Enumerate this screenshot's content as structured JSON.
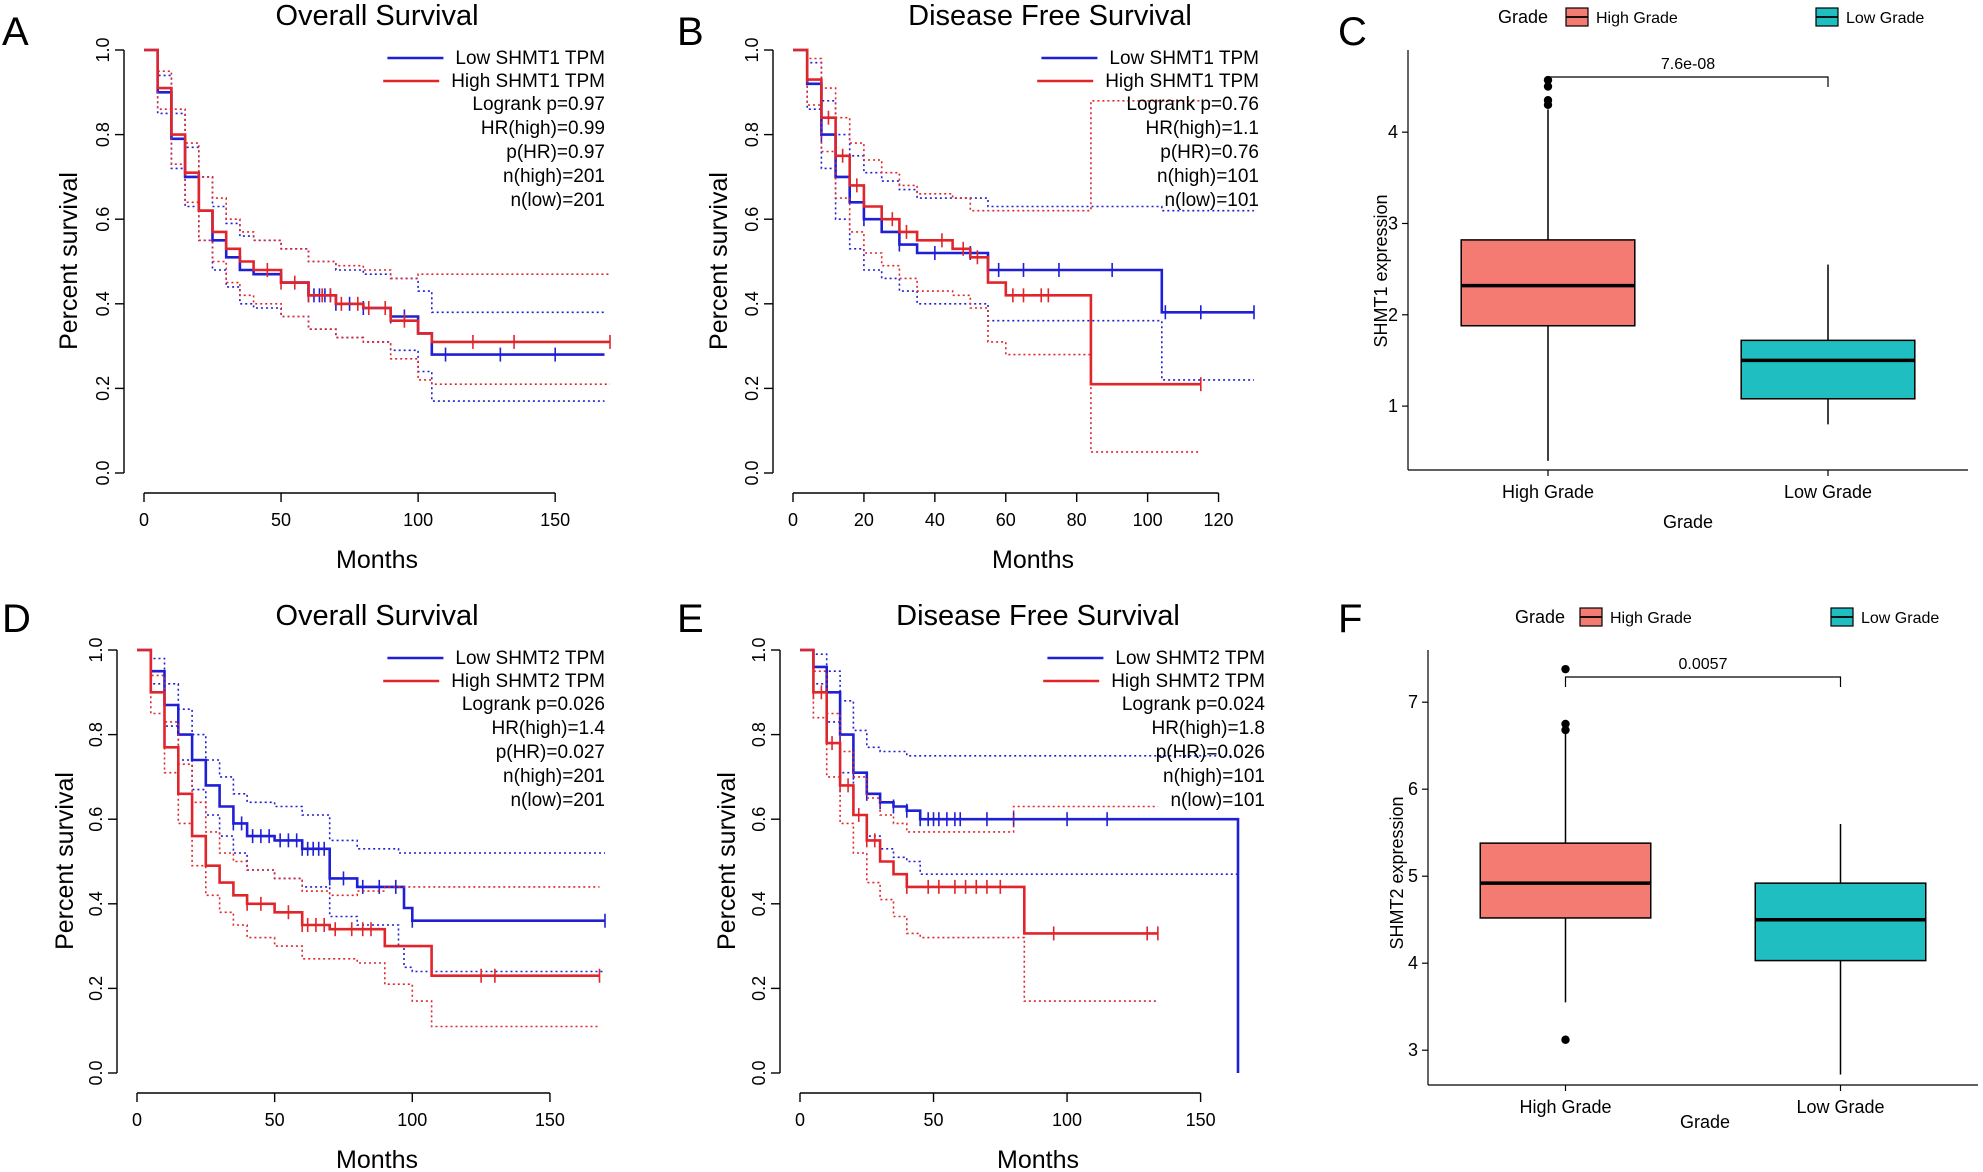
{
  "colors": {
    "low": "#1f1fd6",
    "high": "#e0252b",
    "box_high": "#f47b72",
    "box_low": "#1fbfc1"
  },
  "chart_data": [
    {
      "type": "line",
      "panel": "A",
      "title": "Overall Survival",
      "xlabel": "Months",
      "ylabel": "Percent survival",
      "xlim": [
        0,
        170
      ],
      "ylim": [
        0,
        1
      ],
      "xticks": [
        "0",
        "50",
        "100",
        "150"
      ],
      "yticks": [
        "0.0",
        "0.2",
        "0.4",
        "0.6",
        "0.8",
        "1.0"
      ],
      "legend": [
        "Low SHMT1 TPM",
        "High SHMT1 TPM"
      ],
      "stats": [
        "Logrank p=0.97",
        "HR(high)=0.99",
        "p(HR)=0.97",
        "n(high)=201",
        "n(low)=201"
      ],
      "series": [
        {
          "name": "Low SHMT1 TPM",
          "color": "low",
          "x": [
            0,
            5,
            10,
            15,
            20,
            25,
            30,
            35,
            40,
            50,
            60,
            70,
            80,
            90,
            100,
            105,
            110,
            168
          ],
          "y": [
            1.0,
            0.9,
            0.79,
            0.7,
            0.62,
            0.55,
            0.51,
            0.48,
            0.47,
            0.45,
            0.42,
            0.4,
            0.39,
            0.37,
            0.33,
            0.28,
            0.28,
            0.28
          ],
          "upper": [
            1.0,
            0.94,
            0.85,
            0.77,
            0.7,
            0.63,
            0.59,
            0.56,
            0.55,
            0.53,
            0.5,
            0.48,
            0.47,
            0.46,
            0.43,
            0.38,
            0.38,
            0.38
          ],
          "lower": [
            1.0,
            0.85,
            0.72,
            0.63,
            0.55,
            0.48,
            0.44,
            0.4,
            0.39,
            0.37,
            0.34,
            0.32,
            0.31,
            0.29,
            0.24,
            0.17,
            0.17,
            0.17
          ],
          "censors": [
            60,
            62,
            64,
            66,
            68,
            70,
            75,
            80,
            90,
            95,
            110,
            130,
            150
          ]
        },
        {
          "name": "High SHMT1 TPM",
          "color": "high",
          "x": [
            0,
            5,
            10,
            15,
            20,
            25,
            30,
            35,
            40,
            50,
            60,
            70,
            80,
            90,
            100,
            105,
            110,
            170
          ],
          "y": [
            1.0,
            0.91,
            0.8,
            0.71,
            0.62,
            0.57,
            0.53,
            0.5,
            0.48,
            0.45,
            0.42,
            0.4,
            0.39,
            0.36,
            0.33,
            0.31,
            0.31,
            0.31
          ],
          "upper": [
            1.0,
            0.95,
            0.86,
            0.78,
            0.7,
            0.65,
            0.6,
            0.57,
            0.55,
            0.53,
            0.5,
            0.49,
            0.48,
            0.46,
            0.47,
            0.47,
            0.47,
            0.47
          ],
          "lower": [
            1.0,
            0.86,
            0.73,
            0.64,
            0.55,
            0.5,
            0.45,
            0.42,
            0.4,
            0.37,
            0.34,
            0.32,
            0.31,
            0.27,
            0.22,
            0.21,
            0.21,
            0.21
          ],
          "censors": [
            45,
            50,
            55,
            60,
            65,
            68,
            72,
            78,
            82,
            88,
            95,
            120,
            135,
            170
          ]
        }
      ]
    },
    {
      "type": "line",
      "panel": "B",
      "title": "Disease Free Survival",
      "xlabel": "Months",
      "ylabel": "Percent survival",
      "xlim": [
        0,
        130
      ],
      "ylim": [
        0,
        1
      ],
      "xticks": [
        "0",
        "20",
        "40",
        "60",
        "80",
        "100",
        "120"
      ],
      "yticks": [
        "0.0",
        "0.2",
        "0.4",
        "0.6",
        "0.8",
        "1.0"
      ],
      "legend": [
        "Low SHMT1 TPM",
        "High SHMT1 TPM"
      ],
      "stats": [
        "Logrank p=0.76",
        "HR(high)=1.1",
        "p(HR)=0.76",
        "n(high)=101",
        "n(low)=101"
      ],
      "series": [
        {
          "name": "Low SHMT1 TPM",
          "color": "low",
          "x": [
            0,
            4,
            8,
            12,
            16,
            20,
            25,
            30,
            35,
            40,
            55,
            60,
            100,
            104,
            130
          ],
          "y": [
            1.0,
            0.92,
            0.8,
            0.7,
            0.64,
            0.6,
            0.57,
            0.54,
            0.52,
            0.52,
            0.48,
            0.48,
            0.48,
            0.38,
            0.38
          ],
          "upper": [
            1.0,
            0.97,
            0.88,
            0.8,
            0.75,
            0.71,
            0.69,
            0.67,
            0.65,
            0.65,
            0.63,
            0.63,
            0.63,
            0.62,
            0.62
          ],
          "lower": [
            1.0,
            0.86,
            0.72,
            0.6,
            0.53,
            0.48,
            0.46,
            0.43,
            0.4,
            0.4,
            0.36,
            0.36,
            0.36,
            0.22,
            0.22
          ],
          "censors": [
            8,
            20,
            30,
            40,
            50,
            58,
            65,
            75,
            90,
            105,
            115,
            130
          ]
        },
        {
          "name": "High SHMT1 TPM",
          "color": "high",
          "x": [
            0,
            4,
            8,
            12,
            16,
            20,
            25,
            30,
            35,
            45,
            50,
            55,
            60,
            80,
            84,
            115
          ],
          "y": [
            1.0,
            0.93,
            0.84,
            0.75,
            0.68,
            0.63,
            0.6,
            0.57,
            0.55,
            0.53,
            0.51,
            0.45,
            0.42,
            0.42,
            0.21,
            0.21
          ],
          "upper": [
            1.0,
            0.98,
            0.91,
            0.84,
            0.78,
            0.74,
            0.71,
            0.68,
            0.66,
            0.65,
            0.62,
            0.62,
            0.62,
            0.62,
            0.88,
            0.88
          ],
          "lower": [
            1.0,
            0.87,
            0.76,
            0.65,
            0.57,
            0.52,
            0.49,
            0.46,
            0.43,
            0.42,
            0.39,
            0.31,
            0.28,
            0.28,
            0.05,
            0.05
          ],
          "censors": [
            10,
            14,
            18,
            28,
            32,
            42,
            48,
            52,
            62,
            65,
            70,
            72,
            115
          ]
        }
      ]
    },
    {
      "type": "box",
      "panel": "C",
      "title": "",
      "xlabel": "Grade",
      "ylabel": "SHMT1  expression",
      "ylim": [
        0.3,
        4.9
      ],
      "yticks": [
        "1",
        "2",
        "3",
        "4"
      ],
      "categories": [
        "High Grade",
        "Low Grade"
      ],
      "legend_title": "Grade",
      "legend": [
        "High Grade",
        "Low Grade"
      ],
      "pvalue": "7.6e-08",
      "boxes": [
        {
          "category": "High Grade",
          "min": 0.4,
          "q1": 1.88,
          "median": 2.32,
          "q3": 2.82,
          "max": 4.25,
          "outliers": [
            4.3,
            4.35,
            4.5,
            4.57
          ]
        },
        {
          "category": "Low Grade",
          "min": 0.8,
          "q1": 1.08,
          "median": 1.5,
          "q3": 1.72,
          "max": 2.55,
          "outliers": []
        }
      ]
    },
    {
      "type": "line",
      "panel": "D",
      "title": "Overall Survival",
      "xlabel": "Months",
      "ylabel": "Percent survival",
      "xlim": [
        0,
        170
      ],
      "ylim": [
        0,
        1
      ],
      "xticks": [
        "0",
        "50",
        "100",
        "150"
      ],
      "yticks": [
        "0.0",
        "0.2",
        "0.4",
        "0.6",
        "0.8",
        "1.0"
      ],
      "legend": [
        "Low SHMT2 TPM",
        "High SHMT2 TPM"
      ],
      "stats": [
        "Logrank p=0.026",
        "HR(high)=1.4",
        "p(HR)=0.027",
        "n(high)=201",
        "n(low)=201"
      ],
      "series": [
        {
          "name": "Low SHMT2 TPM",
          "color": "low",
          "x": [
            0,
            5,
            10,
            15,
            20,
            25,
            30,
            35,
            40,
            50,
            60,
            70,
            80,
            90,
            95,
            97,
            100,
            170
          ],
          "y": [
            1.0,
            0.95,
            0.87,
            0.8,
            0.74,
            0.68,
            0.63,
            0.59,
            0.56,
            0.55,
            0.53,
            0.46,
            0.44,
            0.44,
            0.44,
            0.39,
            0.36,
            0.36
          ],
          "upper": [
            1.0,
            0.98,
            0.92,
            0.86,
            0.8,
            0.74,
            0.7,
            0.66,
            0.64,
            0.63,
            0.61,
            0.55,
            0.53,
            0.53,
            0.52,
            0.52,
            0.52,
            0.52
          ],
          "lower": [
            1.0,
            0.92,
            0.82,
            0.74,
            0.67,
            0.61,
            0.56,
            0.52,
            0.48,
            0.46,
            0.44,
            0.37,
            0.35,
            0.35,
            0.3,
            0.25,
            0.24,
            0.24
          ],
          "censors": [
            35,
            38,
            42,
            45,
            48,
            52,
            55,
            58,
            60,
            62,
            64,
            66,
            68,
            70,
            75,
            82,
            88,
            94,
            100,
            170
          ]
        },
        {
          "name": "High SHMT2 TPM",
          "color": "high",
          "x": [
            0,
            5,
            10,
            15,
            20,
            25,
            30,
            35,
            40,
            50,
            60,
            70,
            80,
            90,
            100,
            107,
            110,
            168
          ],
          "y": [
            1.0,
            0.9,
            0.77,
            0.66,
            0.56,
            0.49,
            0.45,
            0.42,
            0.4,
            0.38,
            0.35,
            0.34,
            0.34,
            0.3,
            0.3,
            0.23,
            0.23,
            0.23
          ],
          "upper": [
            1.0,
            0.94,
            0.83,
            0.73,
            0.64,
            0.57,
            0.52,
            0.5,
            0.48,
            0.46,
            0.43,
            0.42,
            0.43,
            0.44,
            0.44,
            0.44,
            0.44,
            0.44
          ],
          "lower": [
            1.0,
            0.85,
            0.71,
            0.59,
            0.49,
            0.42,
            0.38,
            0.35,
            0.32,
            0.3,
            0.27,
            0.27,
            0.26,
            0.21,
            0.17,
            0.11,
            0.11,
            0.11
          ],
          "censors": [
            40,
            45,
            55,
            60,
            62,
            65,
            68,
            72,
            78,
            82,
            85,
            125,
            130,
            168
          ]
        }
      ]
    },
    {
      "type": "line",
      "panel": "E",
      "title": "Disease Free Survival",
      "xlabel": "Months",
      "ylabel": "Percent survival",
      "xlim": [
        0,
        170
      ],
      "ylim": [
        0,
        1
      ],
      "xticks": [
        "0",
        "50",
        "100",
        "150"
      ],
      "yticks": [
        "0.0",
        "0.2",
        "0.4",
        "0.6",
        "0.8",
        "1.0"
      ],
      "legend": [
        "Low SHMT2 TPM",
        "High SHMT2 TPM"
      ],
      "stats": [
        "Logrank p=0.024",
        "HR(high)=1.8",
        "p(HR)=0.026",
        "n(high)=101",
        "n(low)=101"
      ],
      "series": [
        {
          "name": "Low SHMT2 TPM",
          "color": "low",
          "x": [
            0,
            5,
            10,
            15,
            20,
            25,
            30,
            35,
            40,
            45,
            164,
            164
          ],
          "y": [
            1.0,
            0.96,
            0.9,
            0.8,
            0.71,
            0.66,
            0.64,
            0.63,
            0.62,
            0.6,
            0.6,
            0.0
          ],
          "upper": [
            1.0,
            0.99,
            0.95,
            0.88,
            0.81,
            0.77,
            0.76,
            0.76,
            0.75,
            0.75,
            0.75,
            0.75
          ],
          "lower": [
            1.0,
            0.92,
            0.83,
            0.71,
            0.61,
            0.56,
            0.53,
            0.51,
            0.5,
            0.47,
            0.47,
            0.47
          ],
          "censors": [
            15,
            20,
            25,
            30,
            35,
            40,
            45,
            48,
            50,
            52,
            55,
            58,
            60,
            70,
            80,
            100,
            115
          ]
        },
        {
          "name": "High SHMT2 TPM",
          "color": "high",
          "x": [
            0,
            5,
            10,
            15,
            20,
            25,
            30,
            35,
            40,
            45,
            80,
            84,
            134
          ],
          "y": [
            1.0,
            0.9,
            0.78,
            0.68,
            0.61,
            0.55,
            0.5,
            0.47,
            0.44,
            0.44,
            0.44,
            0.33,
            0.33
          ],
          "upper": [
            1.0,
            0.95,
            0.85,
            0.76,
            0.7,
            0.65,
            0.61,
            0.59,
            0.57,
            0.57,
            0.63,
            0.63,
            0.63
          ],
          "lower": [
            1.0,
            0.84,
            0.7,
            0.59,
            0.52,
            0.45,
            0.41,
            0.37,
            0.33,
            0.32,
            0.32,
            0.17,
            0.17
          ],
          "censors": [
            5,
            8,
            12,
            15,
            18,
            22,
            25,
            28,
            40,
            48,
            52,
            58,
            62,
            66,
            70,
            75,
            95,
            130,
            134
          ]
        }
      ]
    },
    {
      "type": "box",
      "panel": "F",
      "title": "",
      "xlabel": "Grade",
      "ylabel": "SHMT2  expression",
      "ylim": [
        2.6,
        7.6
      ],
      "yticks": [
        "3",
        "4",
        "5",
        "6",
        "7"
      ],
      "categories": [
        "High Grade",
        "Low Grade"
      ],
      "legend_title": "Grade",
      "legend": [
        "High Grade",
        "Low Grade"
      ],
      "pvalue": "0.0057",
      "boxes": [
        {
          "category": "High Grade",
          "min": 3.55,
          "q1": 4.52,
          "median": 4.92,
          "q3": 5.38,
          "max": 6.65,
          "outliers": [
            3.12,
            6.68,
            6.75,
            7.38
          ]
        },
        {
          "category": "Low Grade",
          "min": 2.72,
          "q1": 4.03,
          "median": 4.5,
          "q3": 4.92,
          "max": 5.6,
          "outliers": []
        }
      ]
    }
  ]
}
